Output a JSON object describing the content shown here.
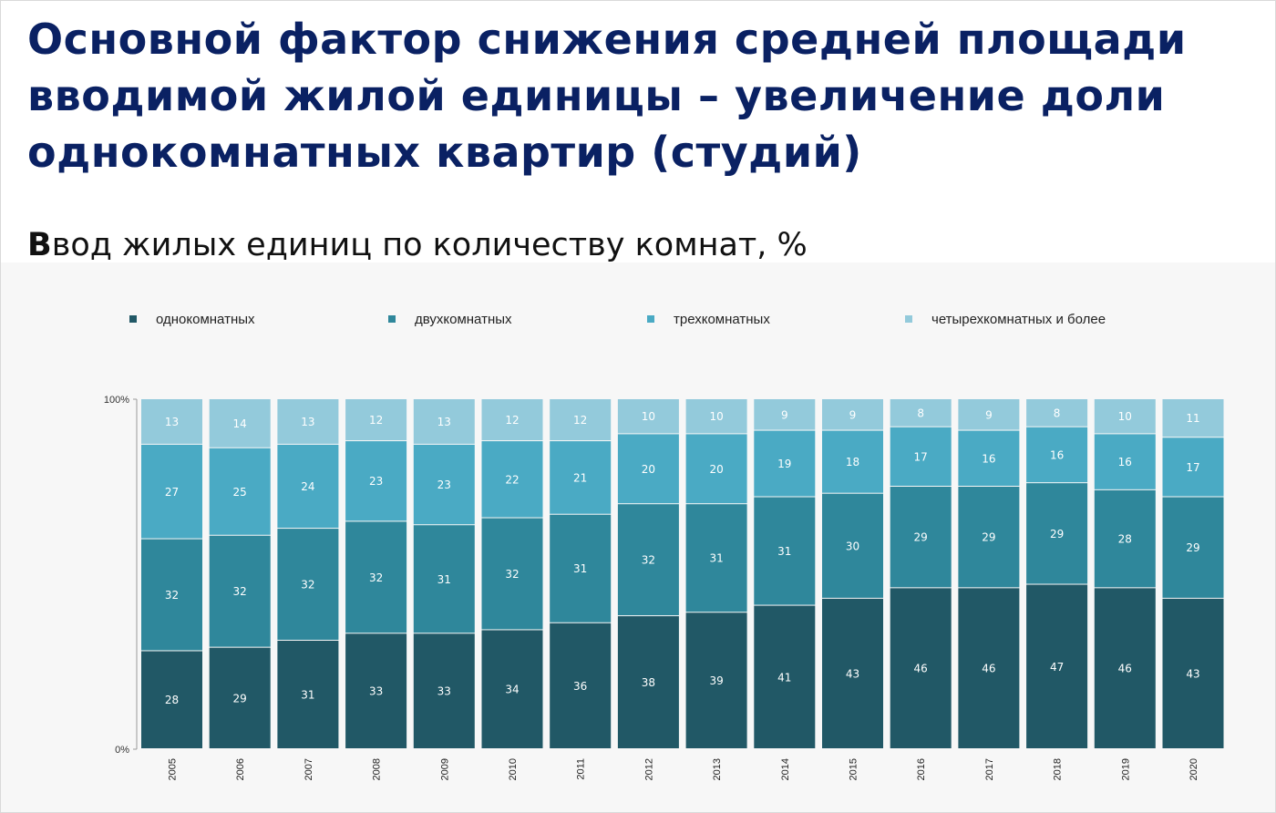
{
  "header": {
    "title": "Основной фактор снижения средней площади вводимой жилой единицы – увеличение доли однокомнатных квартир (студий)",
    "subtitle_first": "В",
    "subtitle_rest": "вод жилых единиц по количеству комнат, %"
  },
  "colors": {
    "title": "#0a2163",
    "series": [
      "#215866",
      "#2f879b",
      "#4aaac4",
      "#93cadb"
    ]
  },
  "chart_data": {
    "type": "bar",
    "stacked": true,
    "normalized": true,
    "categories": [
      "2005",
      "2006",
      "2007",
      "2008",
      "2009",
      "2010",
      "2011",
      "2012",
      "2013",
      "2014",
      "2015",
      "2016",
      "2017",
      "2018",
      "2019",
      "2020"
    ],
    "series": [
      {
        "name": "однокомнатных",
        "values": [
          28,
          29,
          31,
          33,
          33,
          34,
          36,
          38,
          39,
          41,
          43,
          46,
          46,
          47,
          46,
          43
        ]
      },
      {
        "name": "двухкомнатных",
        "values": [
          32,
          32,
          32,
          32,
          31,
          32,
          31,
          32,
          31,
          31,
          30,
          29,
          29,
          29,
          28,
          29
        ]
      },
      {
        "name": "трехкомнатных",
        "values": [
          27,
          25,
          24,
          23,
          23,
          22,
          21,
          20,
          20,
          19,
          18,
          17,
          16,
          16,
          16,
          17
        ]
      },
      {
        "name": "четырехкомнатных и более",
        "values": [
          13,
          14,
          13,
          12,
          13,
          12,
          12,
          10,
          10,
          9,
          9,
          8,
          9,
          8,
          10,
          11
        ]
      }
    ],
    "y_ticks": [
      "0%",
      "100%"
    ],
    "ylim": [
      0,
      100
    ],
    "legend_position": "top",
    "grid": false
  }
}
